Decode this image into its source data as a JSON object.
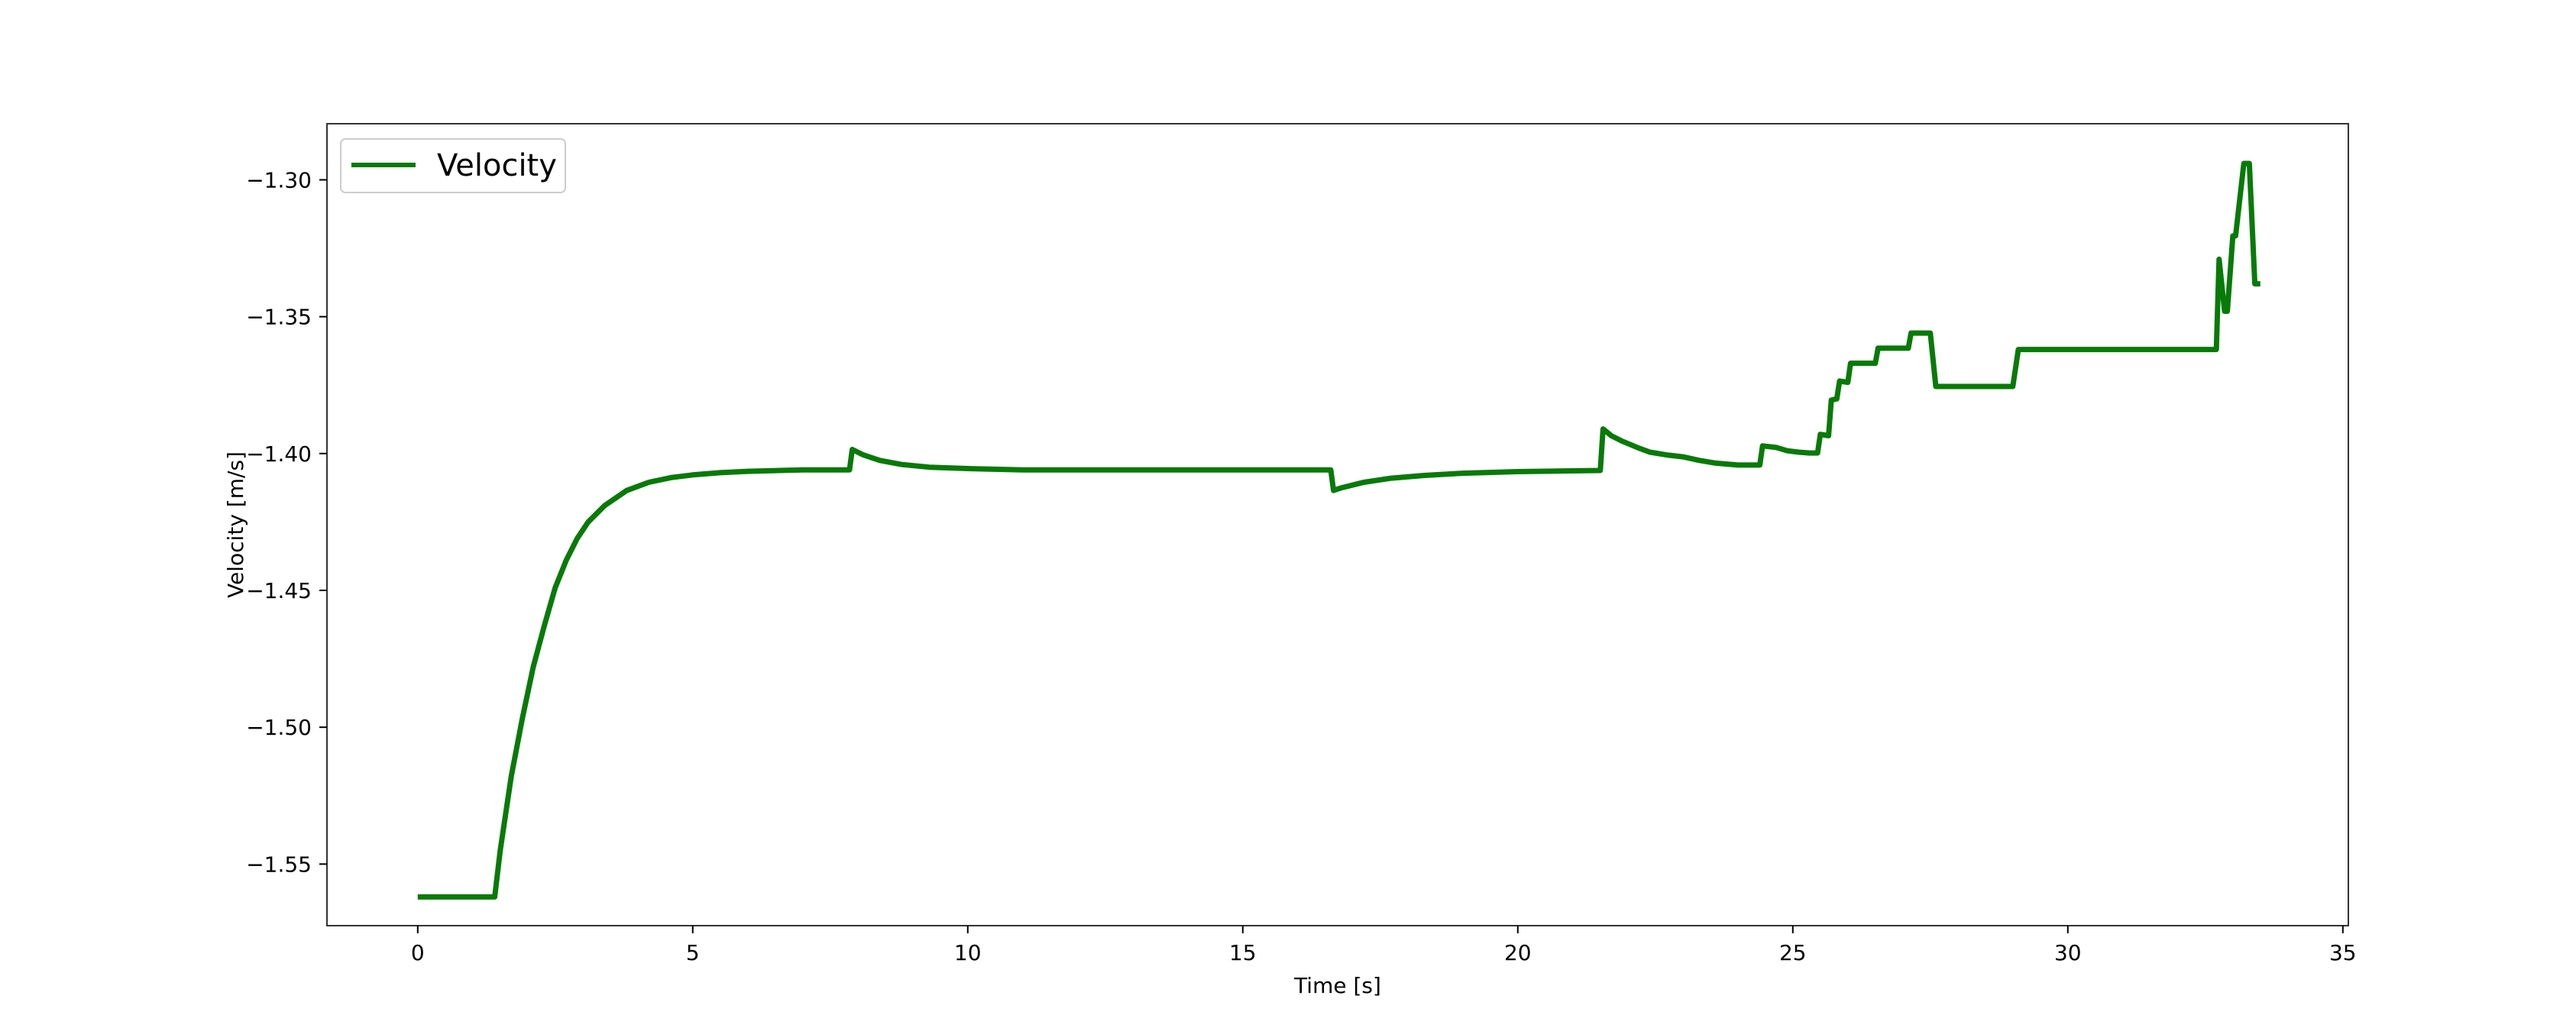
{
  "chart_data": {
    "type": "line",
    "title": "",
    "xlabel": "Time [s]",
    "ylabel": "Velocity [m/s]",
    "xlim": [
      -1.65,
      35.1
    ],
    "ylim": [
      -1.5725,
      -1.2795
    ],
    "xticks": [
      0,
      5,
      10,
      15,
      20,
      25,
      30,
      35
    ],
    "yticks": [
      -1.55,
      -1.5,
      -1.45,
      -1.4,
      -1.35,
      -1.3
    ],
    "grid": false,
    "legend_position": "upper-left",
    "colors": {
      "series": "#087a08",
      "frame": "#333333",
      "background": "#ffffff"
    },
    "series": [
      {
        "name": "Velocity",
        "x": [
          0.0,
          0.5,
          1.0,
          1.4,
          1.5,
          1.7,
          1.9,
          2.1,
          2.3,
          2.5,
          2.7,
          2.9,
          3.1,
          3.4,
          3.8,
          4.2,
          4.6,
          5.0,
          5.5,
          6.0,
          7.0,
          7.85,
          7.9,
          8.1,
          8.4,
          8.8,
          9.3,
          10.0,
          11.0,
          12.0,
          14.0,
          16.6,
          16.65,
          16.8,
          17.2,
          17.7,
          18.3,
          19.0,
          20.0,
          21.5,
          21.55,
          21.7,
          21.9,
          22.2,
          22.4,
          22.7,
          23.0,
          23.3,
          23.6,
          24.0,
          24.4,
          24.45,
          24.7,
          24.9,
          25.1,
          25.3,
          25.45,
          25.5,
          25.65,
          25.7,
          25.8,
          25.85,
          26.0,
          26.05,
          26.5,
          26.55,
          27.1,
          27.15,
          27.5,
          27.6,
          29.0,
          29.1,
          32.7,
          32.75,
          32.85,
          32.9,
          33.0,
          33.05,
          33.2,
          33.3,
          33.4,
          33.5
        ],
        "y": [
          -1.562,
          -1.562,
          -1.562,
          -1.562,
          -1.545,
          -1.518,
          -1.497,
          -1.478,
          -1.463,
          -1.449,
          -1.439,
          -1.431,
          -1.425,
          -1.419,
          -1.4135,
          -1.4105,
          -1.4088,
          -1.4078,
          -1.407,
          -1.4065,
          -1.406,
          -1.406,
          -1.3985,
          -1.4005,
          -1.4025,
          -1.404,
          -1.405,
          -1.4055,
          -1.406,
          -1.406,
          -1.406,
          -1.406,
          -1.4135,
          -1.4125,
          -1.4105,
          -1.409,
          -1.408,
          -1.4072,
          -1.4066,
          -1.4062,
          -1.391,
          -1.3935,
          -1.3955,
          -1.398,
          -1.3995,
          -1.4005,
          -1.4012,
          -1.4025,
          -1.4035,
          -1.4042,
          -1.4042,
          -1.3972,
          -1.3978,
          -1.399,
          -1.3995,
          -1.3998,
          -1.3998,
          -1.393,
          -1.3935,
          -1.3805,
          -1.38,
          -1.3735,
          -1.374,
          -1.367,
          -1.367,
          -1.3615,
          -1.3615,
          -1.356,
          -1.356,
          -1.3755,
          -1.3755,
          -1.362,
          -1.362,
          -1.329,
          -1.348,
          -1.348,
          -1.3205,
          -1.3205,
          -1.294,
          -1.294,
          -1.338,
          -1.338
        ]
      }
    ]
  }
}
